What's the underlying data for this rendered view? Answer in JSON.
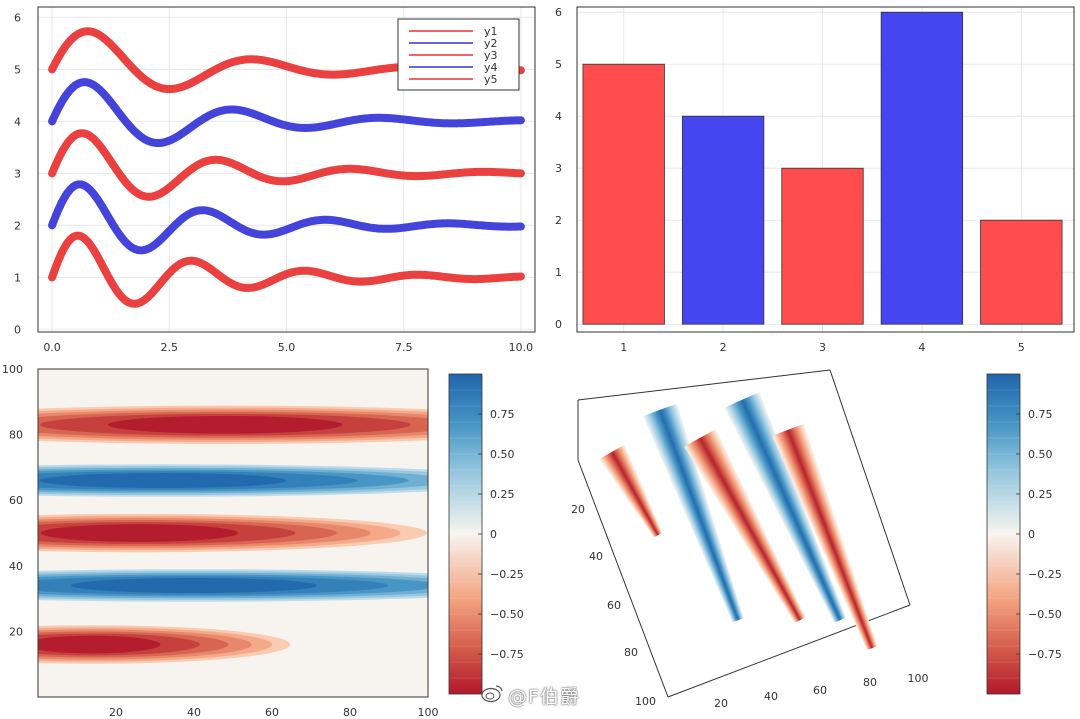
{
  "watermark": "@F伯爵",
  "colors": {
    "red": "#e83030",
    "blue": "#3434d8",
    "bar_red": "#ff4d4d",
    "bar_blue": "#4646f0",
    "frame": "#333333",
    "grid": "#e8e8e8"
  },
  "chart_data": [
    {
      "id": "lines",
      "type": "line",
      "title": "",
      "xlabel": "",
      "ylabel": "",
      "xlim": [
        -0.3,
        10.3
      ],
      "ylim": [
        -0.05,
        6.2
      ],
      "xticks": [
        0,
        2.5,
        5,
        7.5,
        10
      ],
      "xtick_labels": [
        "0.0",
        "2.5",
        "5.0",
        "7.5",
        "10.0"
      ],
      "yticks": [
        0,
        1,
        2,
        3,
        4,
        5,
        6
      ],
      "ytick_labels": [
        "0",
        "1",
        "2",
        "3",
        "4",
        "5",
        "6"
      ],
      "legend_position": "top-right",
      "series": [
        {
          "name": "y1",
          "color": "#e83030",
          "offset": 1,
          "decay": 0.38,
          "omega": 2.6
        },
        {
          "name": "y2",
          "color": "#3434d8",
          "offset": 2,
          "decay": 0.38,
          "omega": 2.4
        },
        {
          "name": "y3",
          "color": "#e83030",
          "offset": 3,
          "decay": 0.38,
          "omega": 2.2
        },
        {
          "name": "y4",
          "color": "#3434d8",
          "offset": 4,
          "decay": 0.38,
          "omega": 2.0
        },
        {
          "name": "y5",
          "color": "#e83030",
          "offset": 5,
          "decay": 0.38,
          "omega": 1.8
        }
      ]
    },
    {
      "id": "bars",
      "type": "bar",
      "title": "",
      "xlabel": "",
      "ylabel": "",
      "categories": [
        "1",
        "2",
        "3",
        "4",
        "5"
      ],
      "values": [
        5,
        4,
        3,
        6,
        2
      ],
      "bar_colors": [
        "#ff4d4d",
        "#4646f0",
        "#ff4d4d",
        "#4646f0",
        "#ff4d4d"
      ],
      "ylim": [
        -0.15,
        6.1
      ],
      "yticks": [
        0,
        1,
        2,
        3,
        4,
        5,
        6
      ],
      "ytick_labels": [
        "0",
        "1",
        "2",
        "3",
        "4",
        "5",
        "6"
      ]
    },
    {
      "id": "contour",
      "type": "heatmap",
      "title": "",
      "xlim": [
        0,
        100
      ],
      "ylim": [
        0,
        100
      ],
      "xticks": [
        20,
        40,
        60,
        80,
        100
      ],
      "xtick_labels": [
        "20",
        "40",
        "60",
        "80",
        "100"
      ],
      "yticks": [
        20,
        40,
        60,
        80,
        100
      ],
      "ytick_labels": [
        "20",
        "40",
        "60",
        "80",
        "100"
      ],
      "colorbar_ticks": [
        0.75,
        0.5,
        0.25,
        0,
        -0.25,
        -0.5,
        -0.75
      ],
      "colorbar_tick_labels": [
        "0.75",
        "0.50",
        "0.25",
        "0",
        "−0.25",
        "−0.50",
        "−0.75"
      ],
      "colormap": "RdBu",
      "zlim": [
        -1,
        1
      ]
    },
    {
      "id": "surface",
      "type": "heatmap",
      "title": "",
      "xticks": [
        20,
        40,
        60,
        80,
        100
      ],
      "xtick_labels": [
        "20",
        "40",
        "60",
        "80",
        "100"
      ],
      "yticks": [
        20,
        40,
        60,
        80,
        100
      ],
      "ytick_labels": [
        "20",
        "40",
        "60",
        "80",
        "100"
      ],
      "colorbar_ticks": [
        0.75,
        0.5,
        0.25,
        0,
        -0.25,
        -0.5,
        -0.75
      ],
      "colorbar_tick_labels": [
        "0.75",
        "0.50",
        "0.25",
        "0",
        "−0.25",
        "−0.50",
        "−0.75"
      ],
      "colormap": "RdBu",
      "zlim": [
        -1,
        1
      ]
    }
  ]
}
